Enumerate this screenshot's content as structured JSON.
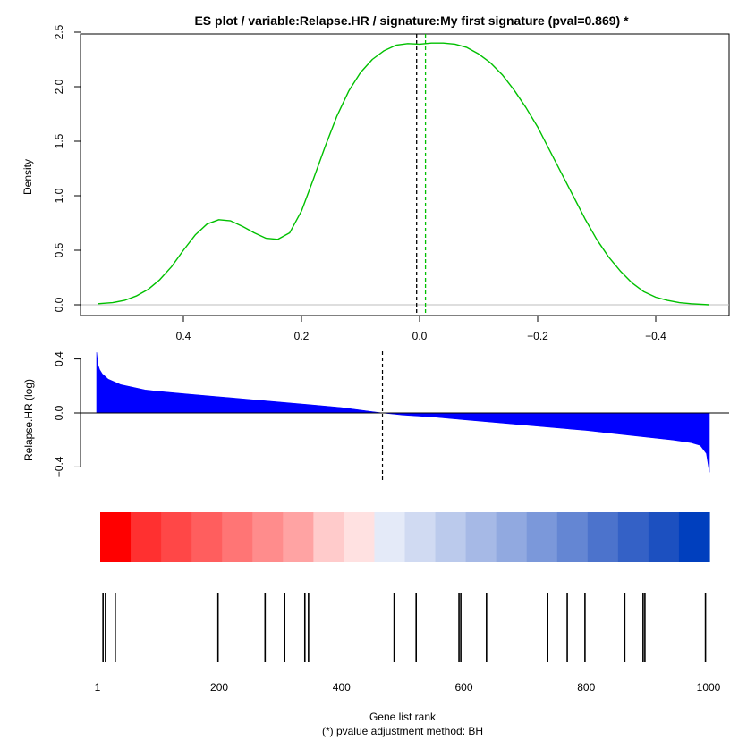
{
  "title": "ES  plot /  variable:Relapse.HR / signature:My first signature (pval=0.869) *",
  "footnote": "(*) pvalue adjustment method: BH",
  "chart_data": [
    {
      "type": "line",
      "panel": "density",
      "title": "ES  plot /  variable:Relapse.HR / signature:My first signature (pval=0.869) *",
      "ylabel": "Density",
      "xlabel": "",
      "x_reversed": true,
      "xlim": [
        0.55,
        -0.5
      ],
      "ylim": [
        0,
        2.5
      ],
      "xticks": [
        0.4,
        0.2,
        0.0,
        -0.2,
        -0.4
      ],
      "xtick_labels": [
        "0.4",
        "0.2",
        "0.0",
        "−0.2",
        "−0.4"
      ],
      "yticks": [
        0,
        0.5,
        1.0,
        1.5,
        2.0,
        2.5
      ],
      "ytick_labels": [
        "0.0",
        "0.5",
        "1.0",
        "1.5",
        "2.0",
        "2.5"
      ],
      "grid": false,
      "line_color": "#00c000",
      "x": [
        0.545,
        0.52,
        0.5,
        0.48,
        0.46,
        0.44,
        0.42,
        0.4,
        0.38,
        0.36,
        0.34,
        0.32,
        0.3,
        0.28,
        0.26,
        0.24,
        0.22,
        0.2,
        0.18,
        0.16,
        0.14,
        0.12,
        0.1,
        0.08,
        0.06,
        0.04,
        0.02,
        0.0,
        -0.02,
        -0.04,
        -0.06,
        -0.08,
        -0.1,
        -0.12,
        -0.14,
        -0.16,
        -0.18,
        -0.2,
        -0.22,
        -0.24,
        -0.26,
        -0.28,
        -0.3,
        -0.32,
        -0.34,
        -0.36,
        -0.38,
        -0.4,
        -0.42,
        -0.44,
        -0.46,
        -0.49
      ],
      "y": [
        0.01,
        0.02,
        0.04,
        0.08,
        0.14,
        0.23,
        0.35,
        0.5,
        0.64,
        0.74,
        0.78,
        0.77,
        0.72,
        0.66,
        0.61,
        0.6,
        0.66,
        0.86,
        1.15,
        1.45,
        1.73,
        1.96,
        2.13,
        2.25,
        2.33,
        2.38,
        2.395,
        2.39,
        2.4,
        2.4,
        2.39,
        2.36,
        2.3,
        2.22,
        2.11,
        1.97,
        1.81,
        1.63,
        1.42,
        1.21,
        1.0,
        0.79,
        0.6,
        0.44,
        0.31,
        0.2,
        0.12,
        0.07,
        0.04,
        0.02,
        0.01,
        0.0
      ],
      "vlines": [
        {
          "x": 0.005,
          "color": "#000000",
          "style": "dashed"
        },
        {
          "x": -0.01,
          "color": "#00c000",
          "style": "dashed"
        }
      ],
      "hline": {
        "y": 0,
        "color": "#bebebe"
      }
    },
    {
      "type": "area",
      "panel": "ranked-values",
      "ylabel": "Relapse.HR (log)",
      "xlim": [
        1,
        1000
      ],
      "ylim": [
        -0.4,
        0.4
      ],
      "yticks": [
        -0.4,
        0.0,
        0.4
      ],
      "ytick_labels": [
        "−0.4",
        "0.0",
        "0.4"
      ],
      "fill_color": "#0000ff",
      "zero_crossing_rank": 467,
      "x": [
        1,
        3,
        6,
        10,
        15,
        20,
        30,
        40,
        50,
        60,
        80,
        100,
        150,
        200,
        250,
        300,
        350,
        400,
        450,
        467,
        500,
        550,
        600,
        650,
        700,
        750,
        800,
        850,
        900,
        940,
        970,
        985,
        995,
        1000
      ],
      "y": [
        0.45,
        0.36,
        0.32,
        0.29,
        0.27,
        0.25,
        0.23,
        0.21,
        0.2,
        0.19,
        0.17,
        0.16,
        0.14,
        0.12,
        0.1,
        0.08,
        0.06,
        0.04,
        0.01,
        0.0,
        -0.015,
        -0.03,
        -0.05,
        -0.07,
        -0.09,
        -0.11,
        -0.13,
        -0.155,
        -0.18,
        -0.2,
        -0.22,
        -0.24,
        -0.3,
        -0.44
      ]
    },
    {
      "type": "heatmap",
      "panel": "color-scale",
      "cells": [
        "#ff0000",
        "#ff3030",
        "#ff4747",
        "#ff5e5e",
        "#ff7575",
        "#ff8c8c",
        "#ffa3a3",
        "#ffcbcb",
        "#ffe1e1",
        "#e4eaf8",
        "#d0daf2",
        "#bbcaec",
        "#a6b9e6",
        "#91a9e0",
        "#7b98da",
        "#6486d3",
        "#4c73cc",
        "#3461c6",
        "#1c50c0",
        "#003fbe"
      ]
    },
    {
      "type": "scatter",
      "panel": "gene-ticks",
      "xlabel": "Gene list rank",
      "xlim": [
        1,
        1000
      ],
      "xticks": [
        1,
        200,
        400,
        600,
        800,
        1000
      ],
      "xtick_labels": [
        "1",
        "200",
        "400",
        "600",
        "800",
        "1000"
      ],
      "ranks": [
        10,
        14,
        30,
        198,
        275,
        307,
        340,
        346,
        486,
        522,
        592,
        595,
        637,
        737,
        769,
        798,
        863,
        893,
        896,
        995
      ]
    }
  ]
}
